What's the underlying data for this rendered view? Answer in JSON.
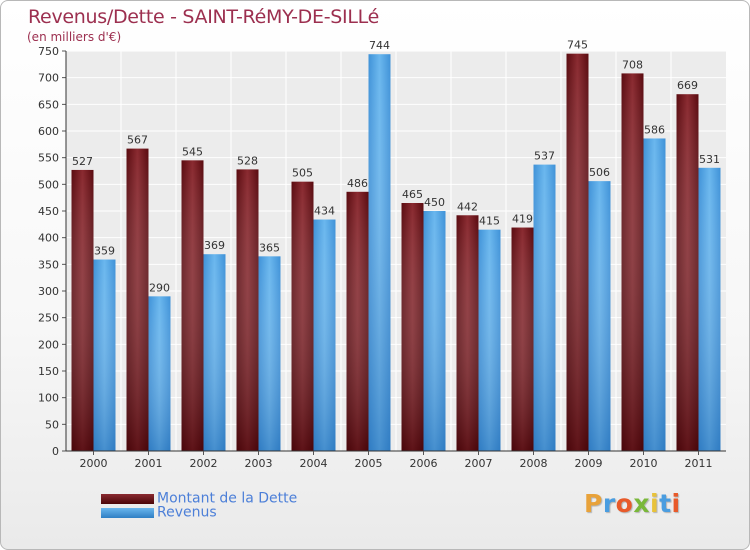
{
  "title": "Revenus/Dette - SAINT-RéMY-DE-SILLé",
  "subtitle": "(en milliers d'€)",
  "legend": [
    {
      "label": "Montant de la Dette",
      "color": "#6b0f14"
    },
    {
      "label": "Revenus",
      "color": "#4a9de0"
    }
  ],
  "logo": "Proxiti",
  "chart_data": {
    "type": "bar",
    "categories": [
      "2000",
      "2001",
      "2002",
      "2003",
      "2004",
      "2005",
      "2006",
      "2007",
      "2008",
      "2009",
      "2010",
      "2011"
    ],
    "series": [
      {
        "name": "Montant de la Dette",
        "color": "#6b0f14",
        "values": [
          527,
          567,
          545,
          528,
          505,
          486,
          465,
          442,
          419,
          745,
          708,
          669
        ]
      },
      {
        "name": "Revenus",
        "color": "#4a9de0",
        "values": [
          359,
          290,
          369,
          365,
          434,
          744,
          450,
          415,
          537,
          506,
          586,
          531
        ]
      }
    ],
    "ylim": [
      0,
      750
    ],
    "yticks": [
      0,
      50,
      100,
      150,
      200,
      250,
      300,
      350,
      400,
      450,
      500,
      550,
      600,
      650,
      700,
      750
    ],
    "grid": true,
    "legend_position": "bottom-left"
  }
}
